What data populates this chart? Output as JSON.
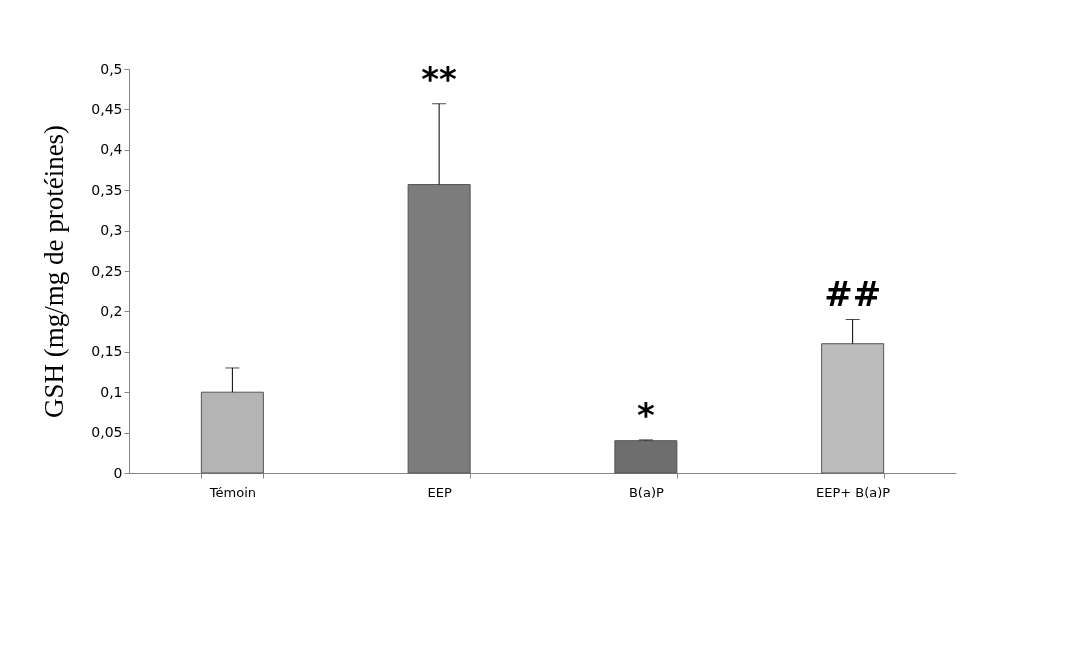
{
  "chart_data": {
    "type": "bar",
    "ylabel": "GSH (mg/mg de protéines)",
    "categories": [
      "Témoin",
      "EEP",
      "B(a)P",
      "EEP+ B(a)P"
    ],
    "values": [
      0.1,
      0.357,
      0.04,
      0.16
    ],
    "colors": [
      "#b4b4b4",
      "#7c7c7c",
      "#6e6e6e",
      "#bcbcbc"
    ],
    "errors": [
      0.03,
      0.1,
      0.001,
      0.03
    ],
    "ylim": [
      0,
      0.5
    ],
    "yticks": [
      0,
      {
        "value": 0.05,
        "label": "0,05"
      },
      {
        "value": 0.1,
        "label": "0,1"
      },
      {
        "value": 0.15,
        "label": "0,15"
      },
      {
        "value": 0.2,
        "label": "0,2"
      },
      {
        "value": 0.25,
        "label": "0,25"
      },
      {
        "value": 0.3,
        "label": "0,3"
      },
      {
        "value": 0.35,
        "label": "0,35"
      },
      {
        "value": 0.4,
        "label": "0,4"
      },
      {
        "value": 0.45,
        "label": "0,45"
      },
      {
        "value": 0.5,
        "label": "0,5"
      }
    ],
    "annotations": [
      "**",
      "*",
      "##"
    ],
    "grid": false
  }
}
